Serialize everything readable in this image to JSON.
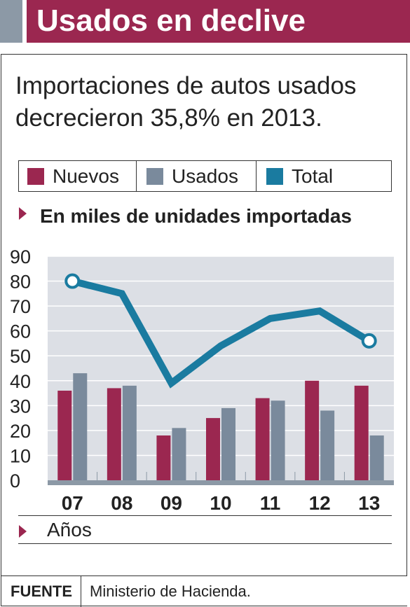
{
  "header": {
    "title": "Usados en declive"
  },
  "subtitle": "Importaciones de autos usados decrecieron 35,8% en 2013.",
  "legend": [
    {
      "label": "Nuevos",
      "color": "#9b2750"
    },
    {
      "label": "Usados",
      "color": "#7a8a9c"
    },
    {
      "label": "Total",
      "color": "#1a7ba0"
    }
  ],
  "units_label": "En miles de unidades importadas",
  "x_axis_label": "Años",
  "source": {
    "label": "FUENTE",
    "text": "Ministerio de Hacienda."
  },
  "chart_data": {
    "type": "bar",
    "categories": [
      "07",
      "08",
      "09",
      "10",
      "11",
      "12",
      "13"
    ],
    "series": [
      {
        "name": "Nuevos",
        "type": "bar",
        "color": "#9b2750",
        "values": [
          36,
          37,
          18,
          25,
          33,
          40,
          38
        ]
      },
      {
        "name": "Usados",
        "type": "bar",
        "color": "#7a8a9c",
        "values": [
          43,
          38,
          21,
          29,
          32,
          28,
          18
        ]
      },
      {
        "name": "Total",
        "type": "line",
        "color": "#1a7ba0",
        "values": [
          80,
          75,
          39,
          54,
          65,
          68,
          56
        ]
      }
    ],
    "yticks": [
      0,
      10,
      20,
      30,
      40,
      50,
      60,
      70,
      80,
      90
    ],
    "ylim": [
      0,
      90
    ],
    "grid": true,
    "legend_position": "top",
    "xlabel": "Años",
    "ylabel": "En miles de unidades importadas"
  }
}
